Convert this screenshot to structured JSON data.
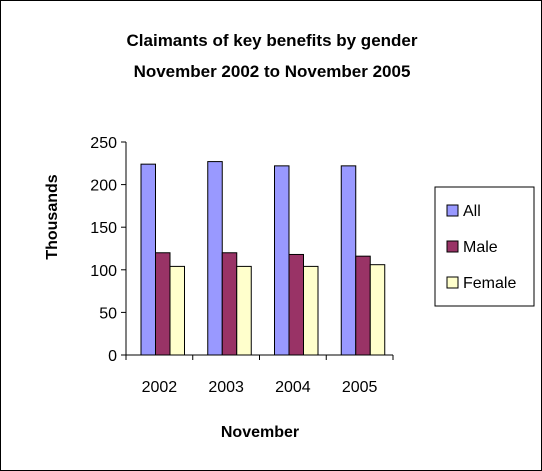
{
  "chart_data": {
    "type": "bar",
    "title": "Claimants of key benefits by gender",
    "subtitle": "November 2002 to November 2005",
    "xlabel": "November",
    "ylabel": "Thousands",
    "categories": [
      "2002",
      "2003",
      "2004",
      "2005"
    ],
    "series": [
      {
        "name": "All",
        "values": [
          224,
          227,
          222,
          222
        ],
        "color": "#9999FF"
      },
      {
        "name": "Male",
        "values": [
          120,
          120,
          118,
          116
        ],
        "color": "#993366"
      },
      {
        "name": "Female",
        "values": [
          104,
          104,
          104,
          106
        ],
        "color": "#FFFFCC"
      }
    ],
    "ylim": [
      0,
      250
    ],
    "yticks": [
      0,
      50,
      100,
      150,
      200,
      250
    ],
    "grid": false,
    "legend": "right"
  }
}
